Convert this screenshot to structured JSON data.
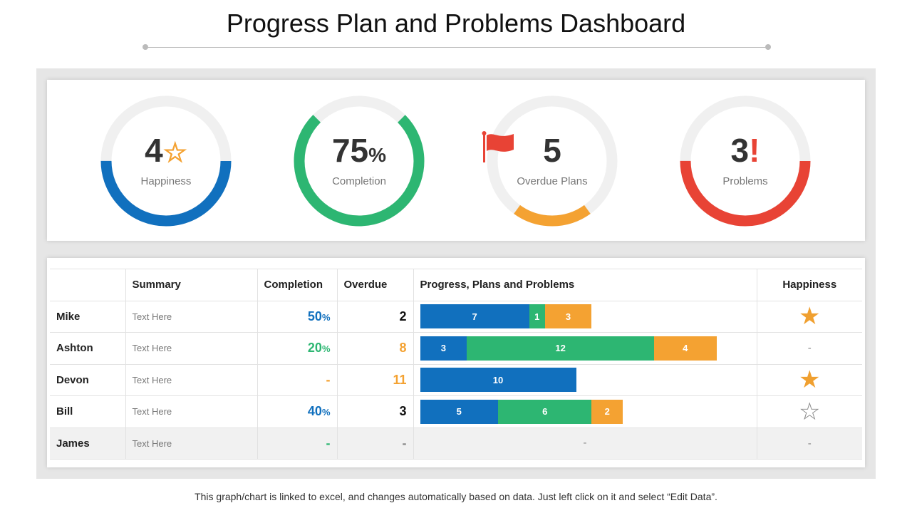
{
  "title": "Progress Plan and Problems Dashboard",
  "colors": {
    "blue": "#1170be",
    "green": "#2db672",
    "orange": "#f4a232",
    "red": "#e84335",
    "track": "#f0f0f0"
  },
  "gauges": [
    {
      "value": "4",
      "suffix_icon": "star-outline-icon",
      "suffix": "☆",
      "label": "Happiness",
      "color": "#1170be",
      "fill": 0.5
    },
    {
      "value": "75",
      "suffix": "%",
      "label": "Completion",
      "color": "#2db672",
      "fill": 0.75
    },
    {
      "value": "5",
      "suffix_icon": "flag-icon",
      "label": "Overdue Plans",
      "color": "#f4a232",
      "fill": 0.2
    },
    {
      "value": "3",
      "suffix": "!",
      "label": "Problems",
      "color": "#e84335",
      "fill": 0.5
    }
  ],
  "table": {
    "headers": [
      "",
      "Summary",
      "Completion",
      "Overdue",
      "Progress, Plans and Problems",
      "Happiness"
    ],
    "rows": [
      {
        "name": "Mike",
        "summary": "Text Here",
        "completion": "50",
        "completion_unit": "%",
        "completion_color": "#1170be",
        "overdue": "2",
        "overdue_color": "#111",
        "bars": [
          7,
          1,
          3
        ],
        "happiness": "★",
        "happiness_icon": "star-filled-icon"
      },
      {
        "name": "Ashton",
        "summary": "Text Here",
        "completion": "20",
        "completion_unit": "%",
        "completion_color": "#2db672",
        "overdue": "8",
        "overdue_color": "#f4a232",
        "bars": [
          3,
          12,
          4
        ],
        "happiness": "-",
        "happiness_icon": "dash"
      },
      {
        "name": "Devon",
        "summary": "Text Here",
        "completion": "-",
        "completion_unit": "",
        "completion_color": "#f4a232",
        "overdue": "11",
        "overdue_color": "#f4a232",
        "bars": [
          10
        ],
        "happiness": "★",
        "happiness_icon": "star-filled-icon"
      },
      {
        "name": "Bill",
        "summary": "Text Here",
        "completion": "40",
        "completion_unit": "%",
        "completion_color": "#1170be",
        "overdue": "3",
        "overdue_color": "#111",
        "bars": [
          5,
          6,
          2
        ],
        "happiness": "☆",
        "happiness_icon": "star-outline-icon"
      },
      {
        "name": "James",
        "summary": "Text Here",
        "completion": "-",
        "completion_unit": "",
        "completion_color": "#2db672",
        "overdue": "-",
        "overdue_color": "#888",
        "bars": [],
        "bars_empty": "-",
        "happiness": "-",
        "happiness_icon": "dash"
      }
    ]
  },
  "footer": "This graph/chart is linked to excel, and changes automatically  based on data. Just left click on it and select “Edit Data”."
}
